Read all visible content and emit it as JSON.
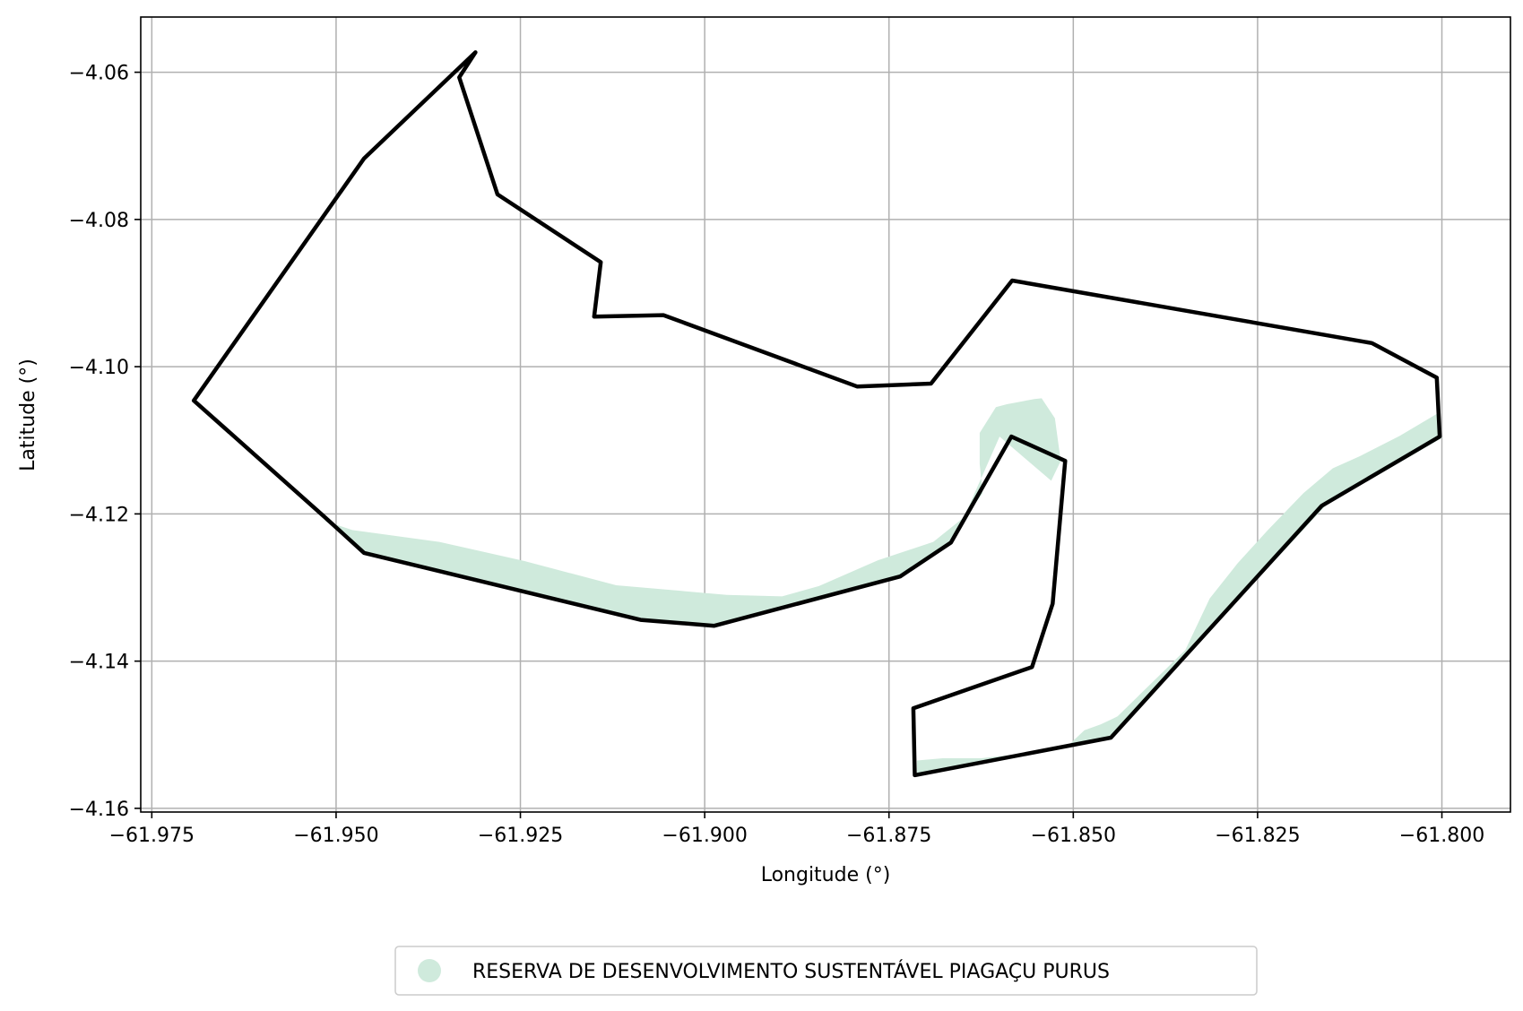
{
  "map": {
    "x_axis_label": "Longitude (°)",
    "y_axis_label": "Latitude (°)",
    "xlim": [
      -61.9765,
      -61.7907
    ],
    "ylim": [
      -4.1605,
      -4.0525
    ],
    "x_ticks": [
      -61.975,
      -61.95,
      -61.925,
      -61.9,
      -61.875,
      -61.85,
      -61.825,
      -61.8
    ],
    "x_tick_labels": [
      "−61.975",
      "−61.950",
      "−61.925",
      "−61.900",
      "−61.875",
      "−61.850",
      "−61.825",
      "−61.800"
    ],
    "y_ticks": [
      -4.06,
      -4.08,
      -4.1,
      -4.12,
      -4.14,
      -4.16
    ],
    "y_tick_labels": [
      "−4.06",
      "−4.08",
      "−4.10",
      "−4.12",
      "−4.14",
      "−4.16"
    ],
    "grid": true,
    "colors": {
      "reserve_fill": "#cfeadc",
      "boundary_stroke": "#000000",
      "grid": "#b0b0b0",
      "frame": "#000000"
    }
  },
  "legend": {
    "placement": "bottom-center",
    "entries": [
      {
        "label": "RESERVA DE DESENVOLVIMENTO SUSTENTÁVEL PIAGAÇU PURUS",
        "marker": "circle",
        "color": "#cfeadc"
      }
    ]
  },
  "chart_data": {
    "type": "map",
    "xlabel": "Longitude (°)",
    "ylabel": "Latitude (°)",
    "xlim": [
      -61.9765,
      -61.7907
    ],
    "ylim": [
      -4.1605,
      -4.0525
    ],
    "grid": true,
    "layers": [
      {
        "name": "reserve-area",
        "kind": "filled-polygon",
        "color": "#cfeadc",
        "legend_label": "RESERVA DE DESENVOLVIMENTO SUSTENTÁVEL PIAGAÇU PURUS",
        "coordinates": [
          [
            -61.952,
            -4.1208
          ],
          [
            -61.9478,
            -4.1222
          ],
          [
            -61.936,
            -4.1238
          ],
          [
            -61.9245,
            -4.1264
          ],
          [
            -61.912,
            -4.1297
          ],
          [
            -61.897,
            -4.131
          ],
          [
            -61.8895,
            -4.1312
          ],
          [
            -61.8845,
            -4.1298
          ],
          [
            -61.8765,
            -4.1263
          ],
          [
            -61.869,
            -4.1238
          ],
          [
            -61.8645,
            -4.1202
          ],
          [
            -61.8623,
            -4.1172
          ],
          [
            -61.8627,
            -4.1132
          ],
          [
            -61.8627,
            -4.109
          ],
          [
            -61.8605,
            -4.1055
          ],
          [
            -61.859,
            -4.1051
          ],
          [
            -61.8553,
            -4.1044
          ],
          [
            -61.8543,
            -4.1043
          ],
          [
            -61.8525,
            -4.107
          ],
          [
            -61.8517,
            -4.1128
          ],
          [
            -61.853,
            -4.1155
          ],
          [
            -61.86,
            -4.1095
          ],
          [
            -61.8663,
            -4.1238
          ],
          [
            -61.8735,
            -4.1285
          ],
          [
            -61.8987,
            -4.1352
          ],
          [
            -61.9087,
            -4.1344
          ],
          [
            -61.9462,
            -4.1253
          ],
          [
            -61.9506,
            -4.1214
          ]
        ],
        "coordinates_2": [
          [
            -61.8712,
            -4.1535
          ],
          [
            -61.8677,
            -4.1532
          ],
          [
            -61.8625,
            -4.1532
          ],
          [
            -61.8527,
            -4.1521
          ],
          [
            -61.8505,
            -4.1513
          ],
          [
            -61.8485,
            -4.1494
          ],
          [
            -61.8463,
            -4.1486
          ],
          [
            -61.8448,
            -4.1479
          ],
          [
            -61.844,
            -4.1475
          ],
          [
            -61.8348,
            -4.1385
          ],
          [
            -61.8315,
            -4.1315
          ],
          [
            -61.8277,
            -4.1267
          ],
          [
            -61.8237,
            -4.1223
          ],
          [
            -61.8188,
            -4.1172
          ],
          [
            -61.8148,
            -4.1138
          ],
          [
            -61.8112,
            -4.1122
          ],
          [
            -61.8057,
            -4.1094
          ],
          [
            -61.8005,
            -4.1063
          ],
          [
            -61.8,
            -4.1097
          ],
          [
            -61.8157,
            -4.1188
          ],
          [
            -61.845,
            -4.1505
          ],
          [
            -61.8712,
            -4.1555
          ]
        ]
      },
      {
        "name": "boundary",
        "kind": "outline",
        "color": "#000000",
        "coordinates": [
          [
            -61.9311,
            -4.0573
          ],
          [
            -61.9333,
            -4.0607
          ],
          [
            -61.9281,
            -4.0766
          ],
          [
            -61.9141,
            -4.0858
          ],
          [
            -61.915,
            -4.0932
          ],
          [
            -61.9056,
            -4.093
          ],
          [
            -61.8793,
            -4.1027
          ],
          [
            -61.8693,
            -4.1023
          ],
          [
            -61.8583,
            -4.0883
          ],
          [
            -61.8095,
            -4.0968
          ],
          [
            -61.8007,
            -4.1015
          ],
          [
            -61.8003,
            -4.1095
          ],
          [
            -61.8163,
            -4.1189
          ],
          [
            -61.8449,
            -4.1504
          ],
          [
            -61.8715,
            -4.1555
          ],
          [
            -61.8717,
            -4.1464
          ],
          [
            -61.8556,
            -4.1408
          ],
          [
            -61.8528,
            -4.1322
          ],
          [
            -61.8511,
            -4.1128
          ],
          [
            -61.8584,
            -4.1095
          ],
          [
            -61.8666,
            -4.1239
          ],
          [
            -61.8735,
            -4.1285
          ],
          [
            -61.8987,
            -4.1352
          ],
          [
            -61.9087,
            -4.1344
          ],
          [
            -61.9462,
            -4.1253
          ],
          [
            -61.9517,
            -4.1203
          ],
          [
            -61.9693,
            -4.1046
          ],
          [
            -61.9462,
            -4.0717
          ],
          [
            -61.9311,
            -4.0573
          ]
        ]
      }
    ],
    "legend": [
      {
        "label": "RESERVA DE DESENVOLVIMENTO SUSTENTÁVEL PIAGAÇU PURUS",
        "color": "#cfeadc"
      }
    ],
    "legend_placement": "bottom-center"
  }
}
